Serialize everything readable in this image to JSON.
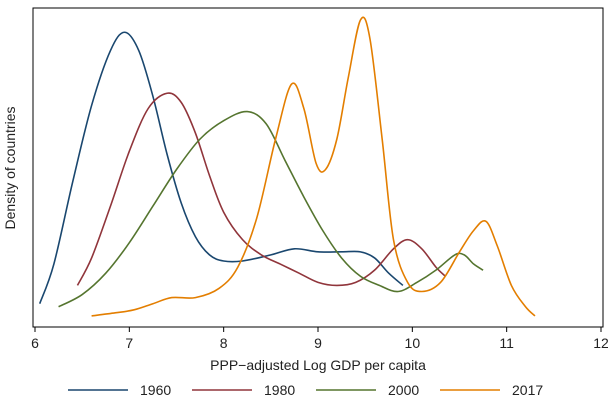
{
  "chart_data": {
    "type": "line",
    "title": "",
    "xlabel": "PPP−adjusted Log GDP per capita",
    "ylabel": "Density of countries",
    "xlim": [
      6,
      12
    ],
    "ylim": [
      0,
      1
    ],
    "x_ticks": [
      "6",
      "7",
      "8",
      "9",
      "10",
      "11",
      "12"
    ],
    "grid": false,
    "legend_position": "bottom",
    "series": [
      {
        "name": "1960",
        "color": "#1a476f",
        "points": [
          [
            6.05,
            0.06
          ],
          [
            6.2,
            0.19
          ],
          [
            6.4,
            0.46
          ],
          [
            6.6,
            0.71
          ],
          [
            6.8,
            0.89
          ],
          [
            6.95,
            0.95
          ],
          [
            7.1,
            0.89
          ],
          [
            7.25,
            0.74
          ],
          [
            7.4,
            0.55
          ],
          [
            7.55,
            0.39
          ],
          [
            7.7,
            0.28
          ],
          [
            7.85,
            0.22
          ],
          [
            8.0,
            0.2
          ],
          [
            8.2,
            0.2
          ],
          [
            8.5,
            0.22
          ],
          [
            8.75,
            0.24
          ],
          [
            9.0,
            0.23
          ],
          [
            9.25,
            0.23
          ],
          [
            9.45,
            0.23
          ],
          [
            9.6,
            0.21
          ],
          [
            9.75,
            0.16
          ],
          [
            9.9,
            0.12
          ]
        ]
      },
      {
        "name": "1980",
        "color": "#90353b",
        "points": [
          [
            6.45,
            0.12
          ],
          [
            6.6,
            0.21
          ],
          [
            6.8,
            0.38
          ],
          [
            7.0,
            0.56
          ],
          [
            7.2,
            0.7
          ],
          [
            7.4,
            0.75
          ],
          [
            7.55,
            0.72
          ],
          [
            7.7,
            0.62
          ],
          [
            7.85,
            0.48
          ],
          [
            8.0,
            0.36
          ],
          [
            8.2,
            0.27
          ],
          [
            8.4,
            0.22
          ],
          [
            8.6,
            0.19
          ],
          [
            8.8,
            0.16
          ],
          [
            9.0,
            0.13
          ],
          [
            9.2,
            0.12
          ],
          [
            9.4,
            0.13
          ],
          [
            9.6,
            0.17
          ],
          [
            9.8,
            0.24
          ],
          [
            9.95,
            0.27
          ],
          [
            10.1,
            0.24
          ],
          [
            10.25,
            0.18
          ],
          [
            10.35,
            0.15
          ]
        ]
      },
      {
        "name": "2000",
        "color": "#55752f",
        "points": [
          [
            6.25,
            0.05
          ],
          [
            6.5,
            0.09
          ],
          [
            6.75,
            0.16
          ],
          [
            7.0,
            0.26
          ],
          [
            7.25,
            0.38
          ],
          [
            7.5,
            0.5
          ],
          [
            7.75,
            0.6
          ],
          [
            8.0,
            0.66
          ],
          [
            8.25,
            0.69
          ],
          [
            8.45,
            0.65
          ],
          [
            8.65,
            0.53
          ],
          [
            8.85,
            0.41
          ],
          [
            9.05,
            0.3
          ],
          [
            9.25,
            0.21
          ],
          [
            9.45,
            0.15
          ],
          [
            9.65,
            0.12
          ],
          [
            9.85,
            0.1
          ],
          [
            10.05,
            0.13
          ],
          [
            10.25,
            0.17
          ],
          [
            10.45,
            0.22
          ],
          [
            10.55,
            0.22
          ],
          [
            10.65,
            0.19
          ],
          [
            10.75,
            0.17
          ]
        ]
      },
      {
        "name": "2017",
        "color": "#e37e00",
        "points": [
          [
            6.6,
            0.02
          ],
          [
            6.85,
            0.03
          ],
          [
            7.05,
            0.04
          ],
          [
            7.25,
            0.06
          ],
          [
            7.45,
            0.08
          ],
          [
            7.7,
            0.08
          ],
          [
            7.95,
            0.11
          ],
          [
            8.15,
            0.18
          ],
          [
            8.35,
            0.34
          ],
          [
            8.55,
            0.6
          ],
          [
            8.72,
            0.78
          ],
          [
            8.85,
            0.7
          ],
          [
            8.98,
            0.52
          ],
          [
            9.08,
            0.5
          ],
          [
            9.2,
            0.6
          ],
          [
            9.32,
            0.8
          ],
          [
            9.45,
            0.99
          ],
          [
            9.55,
            0.93
          ],
          [
            9.68,
            0.6
          ],
          [
            9.8,
            0.27
          ],
          [
            9.95,
            0.13
          ],
          [
            10.1,
            0.1
          ],
          [
            10.3,
            0.13
          ],
          [
            10.5,
            0.23
          ],
          [
            10.65,
            0.3
          ],
          [
            10.78,
            0.33
          ],
          [
            10.9,
            0.25
          ],
          [
            11.05,
            0.12
          ],
          [
            11.2,
            0.05
          ],
          [
            11.3,
            0.02
          ]
        ]
      }
    ]
  }
}
